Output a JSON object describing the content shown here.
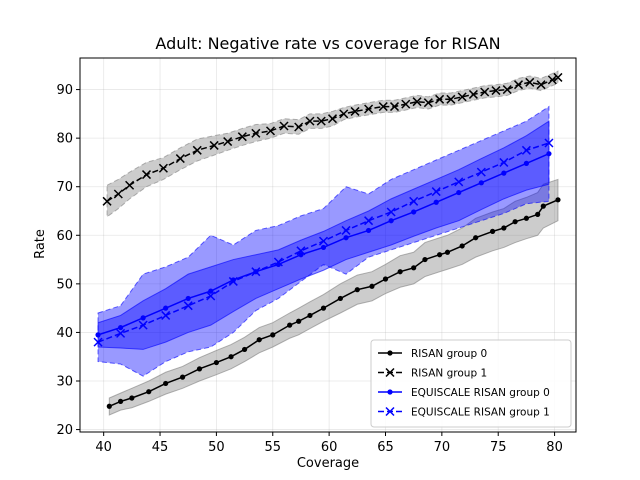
{
  "chart_data": {
    "type": "line",
    "title": "Adult: Negative rate vs coverage for RISAN",
    "xlabel": "Coverage",
    "ylabel": "Rate",
    "xlim": [
      37.9,
      81.9
    ],
    "ylim": [
      19.5,
      96.5
    ],
    "xticks": [
      40,
      45,
      50,
      55,
      60,
      65,
      70,
      75,
      80
    ],
    "yticks": [
      20,
      30,
      40,
      50,
      60,
      70,
      80,
      90
    ],
    "grid": true,
    "legend_position": "bottom-right",
    "series": [
      {
        "name": "RISAN group 0",
        "color": "#000000",
        "marker": "dot",
        "linestyle": "solid",
        "band_color": "#808080",
        "x": [
          40.5,
          41.5,
          42.5,
          44.0,
          45.5,
          47.0,
          48.5,
          50.0,
          51.3,
          52.5,
          53.8,
          55.0,
          56.5,
          57.3,
          58.3,
          59.5,
          61.0,
          62.5,
          63.8,
          65.0,
          66.3,
          67.5,
          68.5,
          69.8,
          70.5,
          71.8,
          73.0,
          74.5,
          75.5,
          76.5,
          77.5,
          78.5,
          79.0,
          80.3
        ],
        "y": [
          24.8,
          25.8,
          26.5,
          27.8,
          29.5,
          30.8,
          32.5,
          33.8,
          35.0,
          36.5,
          38.5,
          39.5,
          41.5,
          42.3,
          43.5,
          45.0,
          47.0,
          48.8,
          49.5,
          51.0,
          52.5,
          53.3,
          55.0,
          56.0,
          56.5,
          57.8,
          59.5,
          60.8,
          61.5,
          62.8,
          63.5,
          64.3,
          66.0,
          67.3
        ],
        "band_lower": [
          23.0,
          24.0,
          24.5,
          25.8,
          27.3,
          28.5,
          30.0,
          31.3,
          32.5,
          34.0,
          35.8,
          37.0,
          38.8,
          39.5,
          40.8,
          42.3,
          44.0,
          45.8,
          46.5,
          48.0,
          49.3,
          50.0,
          51.5,
          52.5,
          53.0,
          54.0,
          55.5,
          56.8,
          57.5,
          58.5,
          59.3,
          60.0,
          61.5,
          63.0
        ],
        "band_upper": [
          26.5,
          27.5,
          28.5,
          30.0,
          31.8,
          33.0,
          34.8,
          36.3,
          37.5,
          39.0,
          41.0,
          42.0,
          44.0,
          45.0,
          46.3,
          47.8,
          50.0,
          51.8,
          52.5,
          54.0,
          55.8,
          56.5,
          58.5,
          59.5,
          60.0,
          61.5,
          63.5,
          64.8,
          65.5,
          67.0,
          67.8,
          68.8,
          70.5,
          71.5
        ]
      },
      {
        "name": "RISAN group 1",
        "color": "#000000",
        "marker": "x",
        "linestyle": "dashed",
        "band_color": "#808080",
        "x": [
          40.3,
          41.3,
          42.3,
          43.8,
          45.3,
          46.8,
          48.3,
          49.8,
          51.0,
          52.3,
          53.5,
          54.8,
          56.0,
          57.3,
          58.3,
          59.3,
          60.3,
          61.3,
          62.3,
          63.5,
          64.8,
          65.8,
          66.8,
          67.8,
          68.8,
          69.8,
          70.8,
          71.8,
          72.8,
          73.8,
          74.8,
          75.8,
          76.8,
          77.8,
          78.8,
          79.8,
          80.3
        ],
        "y": [
          67.0,
          68.5,
          70.3,
          72.5,
          73.8,
          75.8,
          77.5,
          78.5,
          79.3,
          80.3,
          81.0,
          81.5,
          82.5,
          82.3,
          83.5,
          83.5,
          84.0,
          85.0,
          85.5,
          86.0,
          86.5,
          86.5,
          87.0,
          87.5,
          87.3,
          88.0,
          88.0,
          88.5,
          89.0,
          89.5,
          89.8,
          90.0,
          91.0,
          91.5,
          91.0,
          92.0,
          92.5
        ],
        "band_lower": [
          63.8,
          65.5,
          67.5,
          70.0,
          71.5,
          73.5,
          75.3,
          76.5,
          77.5,
          78.5,
          79.3,
          80.0,
          81.0,
          80.8,
          82.0,
          82.0,
          82.5,
          83.8,
          84.3,
          84.8,
          85.3,
          85.3,
          85.8,
          86.3,
          86.0,
          86.8,
          86.8,
          87.3,
          87.8,
          88.3,
          88.5,
          88.8,
          89.8,
          90.3,
          89.8,
          90.8,
          91.3
        ],
        "band_upper": [
          70.3,
          71.5,
          73.0,
          75.0,
          76.0,
          78.0,
          79.8,
          80.5,
          81.0,
          82.0,
          82.8,
          83.0,
          84.0,
          83.8,
          85.0,
          85.0,
          85.5,
          86.3,
          86.8,
          87.3,
          87.8,
          87.8,
          88.3,
          88.8,
          88.5,
          89.3,
          89.3,
          89.8,
          90.3,
          90.8,
          91.0,
          91.3,
          92.3,
          92.8,
          92.3,
          93.3,
          93.8
        ]
      },
      {
        "name": "EQUISCALE RISAN group 0",
        "color": "#0000ff",
        "marker": "dot",
        "linestyle": "solid",
        "band_color": "#0000ff",
        "x": [
          39.5,
          41.5,
          43.5,
          45.5,
          47.5,
          49.5,
          51.5,
          53.5,
          55.5,
          57.5,
          59.5,
          61.5,
          63.5,
          65.5,
          67.5,
          69.5,
          71.5,
          73.5,
          75.5,
          77.5,
          79.5
        ],
        "y": [
          39.5,
          41.0,
          43.0,
          45.0,
          47.0,
          48.5,
          50.8,
          52.5,
          54.0,
          56.0,
          57.5,
          59.5,
          61.0,
          63.0,
          64.8,
          66.8,
          68.8,
          70.8,
          72.8,
          74.8,
          76.8
        ],
        "band_lower": [
          37.0,
          36.8,
          36.5,
          38.0,
          40.0,
          41.5,
          44.3,
          47.0,
          49.0,
          51.0,
          52.8,
          55.0,
          56.5,
          58.0,
          59.8,
          61.5,
          63.0,
          65.3,
          67.5,
          69.3,
          70.5
        ],
        "band_upper": [
          42.0,
          43.5,
          46.5,
          49.0,
          52.0,
          53.5,
          55.0,
          56.0,
          57.0,
          59.0,
          60.8,
          63.0,
          65.0,
          67.5,
          69.5,
          71.5,
          73.5,
          75.8,
          78.0,
          80.5,
          83.5
        ]
      },
      {
        "name": "EQUISCALE RISAN group 1",
        "color": "#0000ff",
        "marker": "x",
        "linestyle": "dashed",
        "band_color": "#0000ff",
        "x": [
          39.5,
          41.5,
          43.5,
          45.5,
          47.5,
          49.5,
          51.5,
          53.5,
          55.5,
          57.5,
          59.5,
          61.5,
          63.5,
          65.5,
          67.5,
          69.5,
          71.5,
          73.5,
          75.5,
          77.5,
          79.5
        ],
        "y": [
          38.0,
          39.8,
          41.5,
          43.5,
          45.5,
          47.5,
          50.5,
          52.5,
          54.5,
          56.8,
          58.8,
          61.0,
          63.0,
          64.8,
          67.0,
          69.0,
          71.0,
          73.0,
          75.0,
          77.5,
          79.0
        ],
        "band_lower": [
          34.0,
          33.5,
          31.0,
          34.0,
          36.0,
          37.0,
          40.0,
          44.5,
          47.0,
          50.5,
          54.0,
          52.0,
          55.5,
          57.0,
          58.5,
          60.0,
          61.5,
          63.0,
          64.5,
          66.5,
          67.0
        ],
        "band_upper": [
          44.0,
          45.5,
          52.0,
          53.5,
          55.5,
          60.0,
          58.0,
          61.0,
          62.0,
          64.0,
          65.5,
          70.0,
          68.5,
          71.5,
          73.5,
          75.5,
          77.5,
          79.5,
          81.5,
          83.5,
          86.5
        ]
      }
    ]
  }
}
